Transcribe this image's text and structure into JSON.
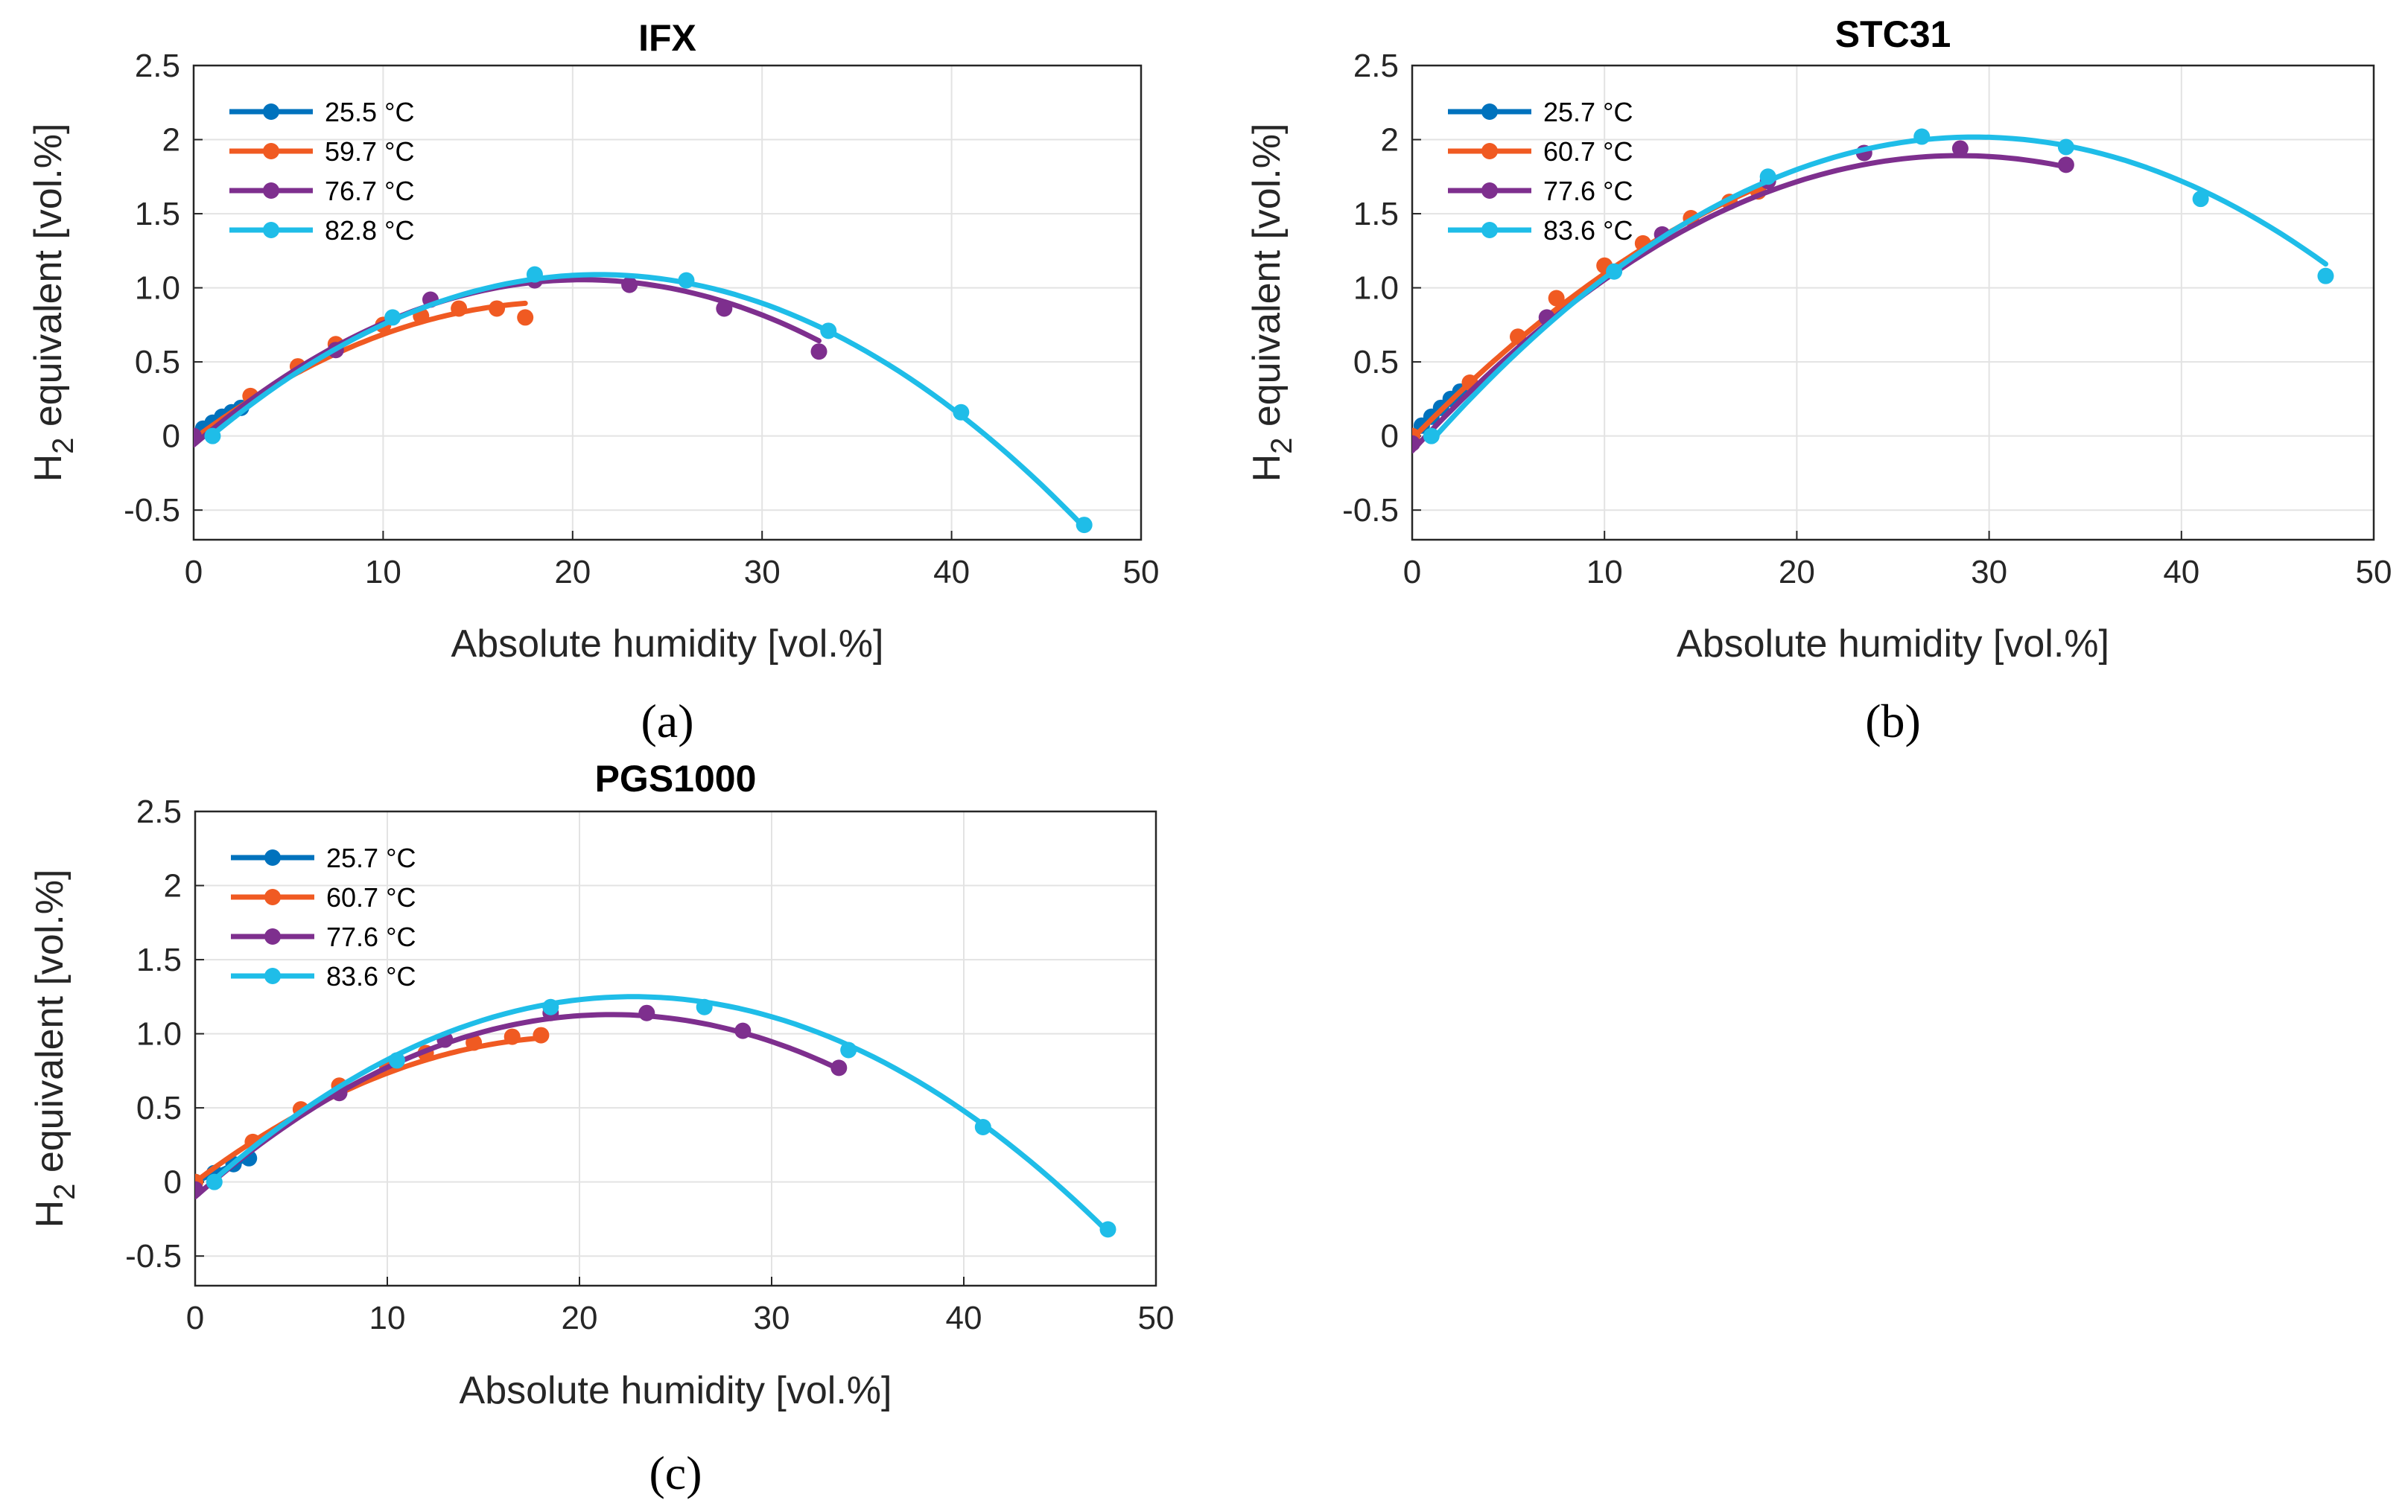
{
  "chart_data": [
    {
      "type": "line",
      "panel": "a",
      "caption": "(a)",
      "title": "IFX",
      "xlabel": "Absolute humidity [vol.%]",
      "ylabel_main": "H",
      "ylabel_sub": "2",
      "ylabel_rest": " equivalent [vol.%]",
      "xlim": [
        0,
        50
      ],
      "ylim": [
        -0.7,
        2.5
      ],
      "xticks": [
        "0",
        "10",
        "20",
        "30",
        "40",
        "50"
      ],
      "yticks": [
        "-0.5",
        "0",
        "0.5",
        "1.0",
        "1.5",
        "2",
        "2.5"
      ],
      "grid": true,
      "legend_position": "top-left",
      "series": [
        {
          "name": "25.5 °C",
          "color": "#0072BD",
          "points": [
            [
              0,
              0
            ],
            [
              0.5,
              0.05
            ],
            [
              1,
              0.09
            ],
            [
              1.5,
              0.13
            ],
            [
              2,
              0.16
            ],
            [
              2.5,
              0.19
            ]
          ],
          "fit": [
            0,
            0.0824,
            0
          ]
        },
        {
          "name": "59.7 °C",
          "color": "#F05A22",
          "points": [
            [
              0,
              0
            ],
            [
              3,
              0.27
            ],
            [
              5.5,
              0.47
            ],
            [
              7.5,
              0.62
            ],
            [
              10,
              0.75
            ],
            [
              12,
              0.81
            ],
            [
              14,
              0.86
            ],
            [
              16,
              0.86
            ],
            [
              17.5,
              0.8
            ]
          ],
          "fit": [
            -0.02,
            0.0949,
            -0.002434
          ]
        },
        {
          "name": "76.7 °C",
          "color": "#7E2F8E",
          "points": [
            [
              0,
              0
            ],
            [
              7.5,
              0.58
            ],
            [
              12.5,
              0.92
            ],
            [
              18,
              1.05
            ],
            [
              23,
              1.02
            ],
            [
              28,
              0.86
            ],
            [
              33,
              0.57
            ]
          ],
          "fit": [
            -0.06,
            0.1086,
            -0.002646
          ]
        },
        {
          "name": "82.8 °C",
          "color": "#1FBDE8",
          "points": [
            [
              1,
              0
            ],
            [
              10.5,
              0.8
            ],
            [
              18,
              1.09
            ],
            [
              26,
              1.05
            ],
            [
              33.5,
              0.71
            ],
            [
              40.5,
              0.16
            ],
            [
              47,
              -0.6
            ]
          ],
          "fit": [
            -0.1,
            0.1112,
            -0.0026
          ]
        }
      ]
    },
    {
      "type": "line",
      "panel": "b",
      "caption": "(b)",
      "title": "STC31",
      "xlabel": "Absolute humidity [vol.%]",
      "ylabel_main": "H",
      "ylabel_sub": "2",
      "ylabel_rest": " equivalent [vol.%]",
      "xlim": [
        0,
        50
      ],
      "ylim": [
        -0.7,
        2.5
      ],
      "xticks": [
        "0",
        "10",
        "20",
        "30",
        "40",
        "50"
      ],
      "yticks": [
        "-0.5",
        "0",
        "0.5",
        "1.0",
        "1.5",
        "2",
        "2.5"
      ],
      "grid": true,
      "legend_position": "top-left",
      "series": [
        {
          "name": "25.7 °C",
          "color": "#0072BD",
          "points": [
            [
              0,
              0
            ],
            [
              0.5,
              0.07
            ],
            [
              1,
              0.13
            ],
            [
              1.5,
              0.19
            ],
            [
              2,
              0.25
            ],
            [
              2.5,
              0.3
            ]
          ],
          "fit": [
            0,
            0.12,
            0
          ]
        },
        {
          "name": "60.7 °C",
          "color": "#F05A22",
          "points": [
            [
              0,
              0
            ],
            [
              3,
              0.36
            ],
            [
              5.5,
              0.67
            ],
            [
              7.5,
              0.93
            ],
            [
              10,
              1.15
            ],
            [
              12,
              1.3
            ],
            [
              14.5,
              1.47
            ],
            [
              16.5,
              1.58
            ],
            [
              18,
              1.65
            ]
          ],
          "fit": [
            -0.02,
            0.133,
            -0.00215
          ]
        },
        {
          "name": "77.6 °C",
          "color": "#7E2F8E",
          "points": [
            [
              0,
              -0.05
            ],
            [
              7,
              0.8
            ],
            [
              13,
              1.36
            ],
            [
              18.5,
              1.72
            ],
            [
              23.5,
              1.91
            ],
            [
              28.5,
              1.94
            ],
            [
              34,
              1.83
            ]
          ],
          "fit": [
            -0.1,
            0.14,
            -0.00246
          ]
        },
        {
          "name": "83.6 °C",
          "color": "#1FBDE8",
          "points": [
            [
              1,
              0
            ],
            [
              10.5,
              1.11
            ],
            [
              18.5,
              1.75
            ],
            [
              26.5,
              2.02
            ],
            [
              34,
              1.95
            ],
            [
              41,
              1.6
            ],
            [
              47.5,
              1.08
            ]
          ],
          "fit": [
            -0.18,
            0.1503,
            -0.00257
          ]
        }
      ]
    },
    {
      "type": "line",
      "panel": "c",
      "caption": "(c)",
      "title": "PGS1000",
      "xlabel": "Absolute humidity [vol.%]",
      "ylabel_main": "H",
      "ylabel_sub": "2",
      "ylabel_rest": " equivalent [vol.%]",
      "xlim": [
        0,
        50
      ],
      "ylim": [
        -0.7,
        2.5
      ],
      "xticks": [
        "0",
        "10",
        "20",
        "30",
        "40",
        "50"
      ],
      "yticks": [
        "-0.5",
        "0",
        "0.5",
        "1.0",
        "1.5",
        "2",
        "2.5"
      ],
      "grid": true,
      "legend_position": "top-left",
      "series": [
        {
          "name": "25.7 °C",
          "color": "#0072BD",
          "points": [
            [
              0,
              0
            ],
            [
              1,
              0.06
            ],
            [
              2,
              0.12
            ],
            [
              2.8,
              0.16
            ]
          ],
          "fit": [
            0,
            0.058,
            0
          ]
        },
        {
          "name": "60.7 °C",
          "color": "#F05A22",
          "points": [
            [
              0,
              0
            ],
            [
              3,
              0.27
            ],
            [
              5.5,
              0.49
            ],
            [
              7.5,
              0.65
            ],
            [
              10,
              0.78
            ],
            [
              12,
              0.87
            ],
            [
              14.5,
              0.94
            ],
            [
              16.5,
              0.98
            ],
            [
              18,
              0.99
            ]
          ],
          "fit": [
            0,
            0.0977,
            -0.00243
          ]
        },
        {
          "name": "77.6 °C",
          "color": "#7E2F8E",
          "points": [
            [
              0,
              -0.05
            ],
            [
              7.5,
              0.6
            ],
            [
              13,
              0.96
            ],
            [
              18.5,
              1.14
            ],
            [
              23.5,
              1.14
            ],
            [
              28.5,
              1.02
            ],
            [
              33.5,
              0.77
            ]
          ],
          "fit": [
            -0.1,
            0.1135,
            -0.00262
          ]
        },
        {
          "name": "83.6 °C",
          "color": "#1FBDE8",
          "points": [
            [
              1,
              0
            ],
            [
              10.5,
              0.82
            ],
            [
              18.5,
              1.18
            ],
            [
              26.5,
              1.18
            ],
            [
              34,
              0.89
            ],
            [
              41,
              0.37
            ],
            [
              47.5,
              -0.32
            ]
          ],
          "fit": [
            -0.1,
            0.1185,
            -0.0026
          ]
        }
      ]
    }
  ]
}
